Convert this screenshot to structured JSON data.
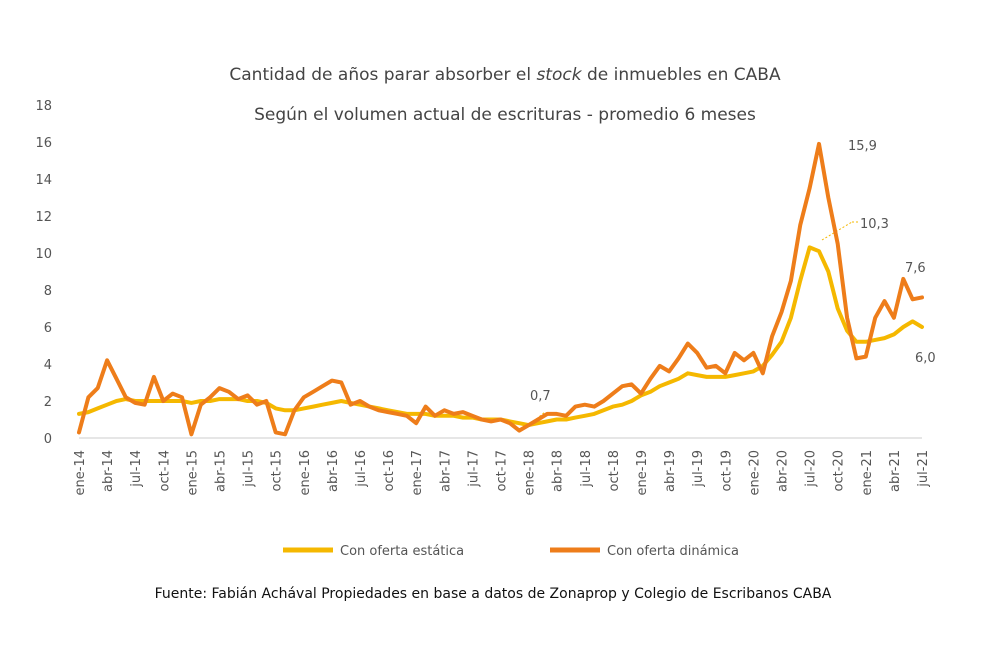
{
  "chart_data": {
    "type": "line",
    "title": [
      "Cantidad de años parar absorber el ",
      "stock",
      " de inmuebles en CABA"
    ],
    "subtitle": "Según el volumen actual de escrituras - promedio 6 meses",
    "source": "Fuente: Fabián Achával Propiedades en base a datos de Zonaprop y Colegio de Escribanos CABA",
    "categories": [
      "ene-14",
      null,
      null,
      "abr-14",
      null,
      null,
      "jul-14",
      null,
      null,
      "oct-14",
      null,
      null,
      "ene-15",
      null,
      null,
      "abr-15",
      null,
      null,
      "jul-15",
      null,
      null,
      "oct-15",
      null,
      null,
      "ene-16",
      null,
      null,
      "abr-16",
      null,
      null,
      "jul-16",
      null,
      null,
      "oct-16",
      null,
      null,
      "ene-17",
      null,
      null,
      "abr-17",
      null,
      null,
      "jul-17",
      null,
      null,
      "oct-17",
      null,
      null,
      "ene-18",
      null,
      null,
      "abr-18",
      null,
      null,
      "jul-18",
      null,
      null,
      "oct-18",
      null,
      null,
      "ene-19",
      null,
      null,
      "abr-19",
      null,
      null,
      "jul-19",
      null,
      null,
      "oct-19",
      null,
      null,
      "ene-20",
      null,
      null,
      "abr-20",
      null,
      null,
      "jul-20",
      null,
      null,
      "oct-20",
      null,
      null,
      "ene-21",
      null,
      null,
      "abr-21",
      null,
      null,
      "jul-21"
    ],
    "series": [
      {
        "name": "Con oferta estática",
        "color": "#f5b800",
        "values": [
          1.3,
          1.4,
          1.6,
          1.8,
          2.0,
          2.1,
          2.0,
          2.0,
          2.0,
          2.0,
          2.0,
          2.0,
          1.9,
          2.0,
          2.0,
          2.1,
          2.1,
          2.1,
          2.0,
          2.0,
          1.9,
          1.6,
          1.5,
          1.5,
          1.6,
          1.7,
          1.8,
          1.9,
          2.0,
          1.9,
          1.8,
          1.7,
          1.6,
          1.5,
          1.4,
          1.3,
          1.3,
          1.3,
          1.2,
          1.2,
          1.2,
          1.1,
          1.1,
          1.0,
          1.0,
          1.0,
          0.9,
          0.8,
          0.7,
          0.8,
          0.9,
          1.0,
          1.0,
          1.1,
          1.2,
          1.3,
          1.5,
          1.7,
          1.8,
          2.0,
          2.3,
          2.5,
          2.8,
          3.0,
          3.2,
          3.5,
          3.4,
          3.3,
          3.3,
          3.3,
          3.4,
          3.5,
          3.6,
          3.9,
          4.5,
          5.2,
          6.5,
          8.5,
          10.3,
          10.1,
          9.0,
          7.0,
          5.8,
          5.2,
          5.2,
          5.3,
          5.4,
          5.6,
          6.0,
          6.3,
          6.0
        ]
      },
      {
        "name": "Con oferta dinámica",
        "color": "#ee7d1a",
        "values": [
          0.3,
          2.2,
          2.7,
          4.2,
          3.2,
          2.2,
          1.9,
          1.8,
          3.3,
          2.0,
          2.4,
          2.2,
          0.2,
          1.8,
          2.2,
          2.7,
          2.5,
          2.1,
          2.3,
          1.8,
          2.0,
          0.3,
          0.2,
          1.5,
          2.2,
          2.5,
          2.8,
          3.1,
          3.0,
          1.8,
          2.0,
          1.7,
          1.5,
          1.4,
          1.3,
          1.2,
          0.8,
          1.7,
          1.2,
          1.5,
          1.3,
          1.4,
          1.2,
          1.0,
          0.9,
          1.0,
          0.8,
          0.4,
          0.7,
          1.0,
          1.3,
          1.3,
          1.2,
          1.7,
          1.8,
          1.7,
          2.0,
          2.4,
          2.8,
          2.9,
          2.4,
          3.2,
          3.9,
          3.6,
          4.3,
          5.1,
          4.6,
          3.8,
          3.9,
          3.5,
          4.6,
          4.2,
          4.6,
          3.5,
          5.5,
          6.8,
          8.5,
          11.5,
          13.5,
          15.9,
          13.0,
          10.5,
          6.5,
          4.3,
          4.4,
          6.5,
          7.4,
          6.5,
          8.6,
          7.5,
          7.6
        ]
      }
    ],
    "annotations": [
      "15,9",
      "10,3",
      "7,6",
      "6,0",
      "0,7"
    ],
    "ylim": [
      0,
      18
    ],
    "yticks": [
      0,
      2,
      4,
      6,
      8,
      10,
      12,
      14,
      16,
      18
    ],
    "grid": false
  }
}
